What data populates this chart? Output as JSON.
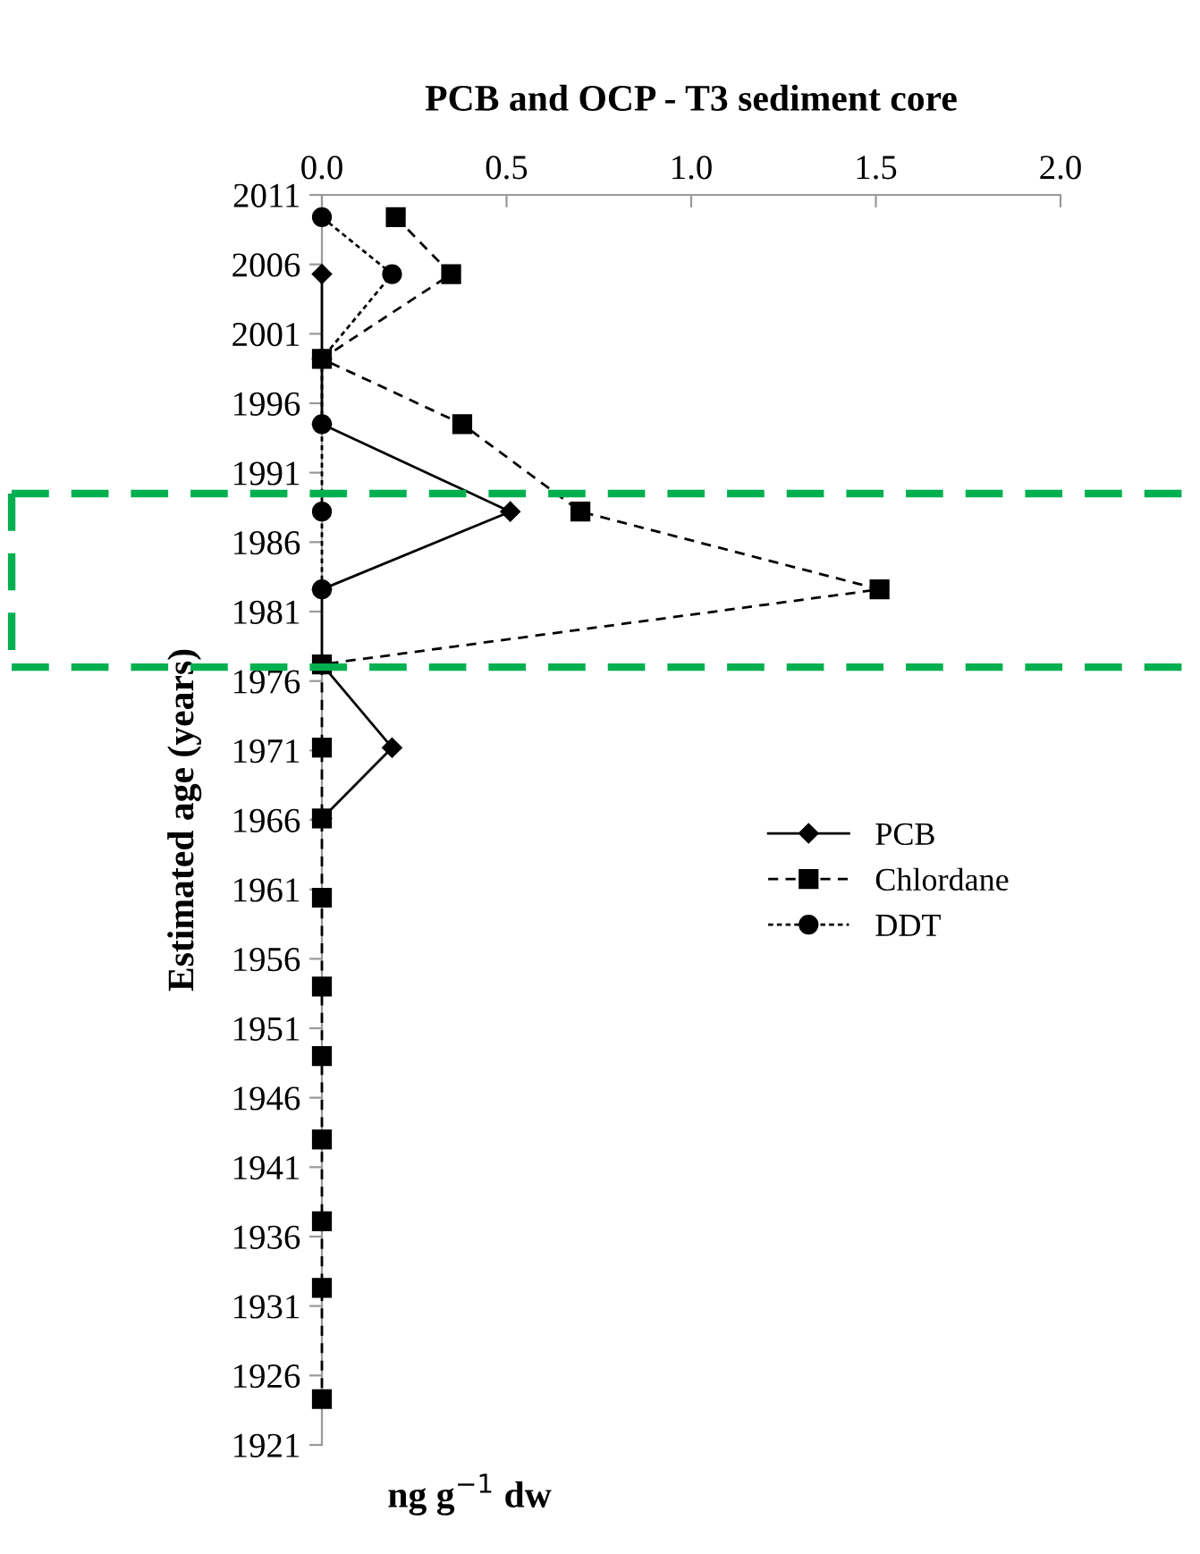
{
  "chart_data": {
    "type": "line",
    "orientation": "horizontal",
    "title": "PCB and OCP - T3 sediment core",
    "xlabel": "ng g$^{−1}$ dw",
    "ylabel": "Estimated age (years)",
    "x": [
      2009.4,
      2005.3,
      1999.2,
      1994.5,
      1988.2,
      1982.6,
      1977.2,
      1971.2,
      1966.1,
      1960.4,
      1954.0,
      1949.0,
      1943.0,
      1937.1,
      1932.3,
      1924.3
    ],
    "series": [
      {
        "name": "PCB",
        "color": "#000000",
        "marker": "diamond",
        "line_style": "solid",
        "values": [
          null,
          0,
          0,
          0,
          0.51,
          0,
          0,
          0.19,
          0,
          null,
          null,
          null,
          null,
          null,
          null,
          null
        ]
      },
      {
        "name": "Chlordane",
        "color": "#000000",
        "marker": "square",
        "line_style": "dashed",
        "values": [
          0.2,
          0.35,
          0,
          0.38,
          0.7,
          1.51,
          0,
          0,
          0,
          0,
          0,
          0,
          0,
          0,
          0,
          0
        ]
      },
      {
        "name": "DDT",
        "color": "#000000",
        "marker": "circle",
        "line_style": "dotted",
        "values": [
          0,
          0.19,
          0,
          0,
          0,
          0,
          null,
          null,
          null,
          null,
          null,
          null,
          null,
          null,
          null,
          null
        ]
      }
    ],
    "xlim": [
      0,
      2
    ],
    "xticks": [
      {
        "value": 0,
        "label": "0.0"
      },
      {
        "value": 0.5,
        "label": "0.5"
      },
      {
        "value": 1,
        "label": "1.0"
      },
      {
        "value": 1.5,
        "label": "1.5"
      },
      {
        "value": 2,
        "label": "2.0"
      }
    ],
    "ylim": [
      1921,
      2011
    ],
    "yticks": [
      1921,
      1926,
      1931,
      1936,
      1941,
      1946,
      1951,
      1956,
      1961,
      1966,
      1971,
      1976,
      1981,
      1986,
      1991,
      1996,
      2001,
      2006,
      2011
    ],
    "ref_lines": [
      {
        "axis": "y",
        "value": 1989.5,
        "color": "#00b050",
        "line_style": "dashed"
      },
      {
        "axis": "y",
        "value": 1977.0,
        "color": "#00b050",
        "line_style": "dashed"
      }
    ],
    "legend": "right",
    "grid": false
  }
}
